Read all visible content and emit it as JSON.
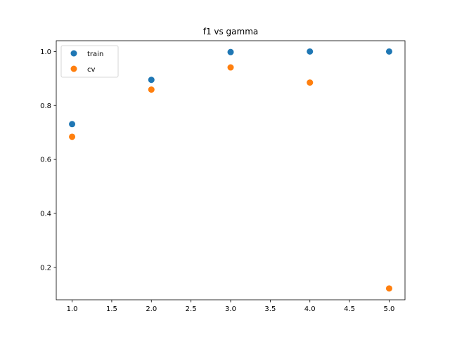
{
  "chart_data": {
    "type": "scatter",
    "title": "f1 vs gamma",
    "xlabel": "",
    "ylabel": "",
    "x": [
      1.0,
      2.0,
      3.0,
      4.0,
      5.0
    ],
    "series": [
      {
        "name": "train",
        "color": "#1f77b4",
        "values": [
          0.731,
          0.895,
          0.998,
          1.0,
          1.0
        ]
      },
      {
        "name": "cv",
        "color": "#ff7f0e",
        "values": [
          0.684,
          0.859,
          0.941,
          0.885,
          0.122
        ]
      }
    ],
    "xlim": [
      0.8,
      5.2
    ],
    "ylim": [
      0.08,
      1.04
    ],
    "xticks": [
      1.0,
      1.5,
      2.0,
      2.5,
      3.0,
      3.5,
      4.0,
      4.5,
      5.0
    ],
    "xtick_labels": [
      "1.0",
      "1.5",
      "2.0",
      "2.5",
      "3.0",
      "3.5",
      "4.0",
      "4.5",
      "5.0"
    ],
    "yticks": [
      0.2,
      0.4,
      0.6,
      0.8,
      1.0
    ],
    "ytick_labels": [
      "0.2",
      "0.4",
      "0.6",
      "0.8",
      "1.0"
    ],
    "grid": false,
    "legend_position": "upper-left"
  }
}
